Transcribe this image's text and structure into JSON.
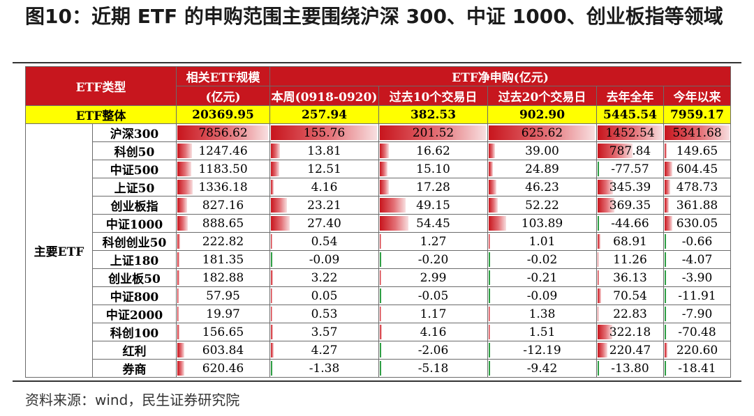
{
  "title": "图10：近期 ETF 的申购范围主要围绕沪深 300、中证 1000、创业板指等领域",
  "source": "资料来源：wind，民生证券研究院",
  "headers": {
    "type": "ETF类型",
    "scale_line1": "相关ETF规模",
    "scale_line2": "(亿元)",
    "net": "ETF净申购(亿元)",
    "week": "本周(0918-0920)",
    "d10": "过去10个交易日",
    "d20": "过去20个交易日",
    "last_year": "去年全年",
    "ytd": "今年以来"
  },
  "total": {
    "label": "ETF整体",
    "values": [
      "20369.95",
      "257.94",
      "382.53",
      "902.90",
      "5445.54",
      "7959.17"
    ]
  },
  "group_label": "主要ETF",
  "rows": [
    {
      "name": "沪深300",
      "values": [
        "7856.62",
        "155.76",
        "201.52",
        "625.62",
        "1452.54",
        "5341.68"
      ]
    },
    {
      "name": "科创50",
      "values": [
        "1247.46",
        "13.81",
        "16.62",
        "39.00",
        "787.84",
        "149.65"
      ]
    },
    {
      "name": "中证500",
      "values": [
        "1183.50",
        "12.51",
        "15.10",
        "24.89",
        "-77.57",
        "604.45"
      ]
    },
    {
      "name": "上证50",
      "values": [
        "1336.18",
        "4.16",
        "17.28",
        "46.23",
        "345.39",
        "478.73"
      ]
    },
    {
      "name": "创业板指",
      "values": [
        "827.16",
        "23.21",
        "49.15",
        "52.22",
        "369.35",
        "361.88"
      ]
    },
    {
      "name": "中证1000",
      "values": [
        "888.65",
        "27.40",
        "54.45",
        "103.89",
        "-44.66",
        "630.05"
      ]
    },
    {
      "name": "科创创业50",
      "values": [
        "222.82",
        "0.54",
        "1.27",
        "1.01",
        "68.91",
        "-0.66"
      ]
    },
    {
      "name": "上证180",
      "values": [
        "181.35",
        "-0.09",
        "-0.20",
        "-0.02",
        "11.26",
        "-4.07"
      ]
    },
    {
      "name": "创业板50",
      "values": [
        "182.88",
        "3.22",
        "2.99",
        "-0.21",
        "36.13",
        "-3.90"
      ]
    },
    {
      "name": "中证800",
      "values": [
        "57.95",
        "0.05",
        "-0.05",
        "-0.09",
        "70.54",
        "-11.91"
      ]
    },
    {
      "name": "中证2000",
      "values": [
        "19.97",
        "0.53",
        "1.17",
        "1.38",
        "22.83",
        "-7.90"
      ]
    },
    {
      "name": "科创100",
      "values": [
        "156.65",
        "3.57",
        "4.16",
        "1.51",
        "322.18",
        "-70.48"
      ]
    },
    {
      "name": "红利",
      "values": [
        "603.84",
        "4.27",
        "-2.06",
        "-12.19",
        "220.47",
        "220.60"
      ]
    },
    {
      "name": "券商",
      "values": [
        "620.46",
        "-1.38",
        "-5.18",
        "-9.42",
        "-13.80",
        "-18.41"
      ]
    }
  ],
  "colors": {
    "header_bg": "#c7161e",
    "total_bg": "#ffff00",
    "bar": "#c8151d",
    "negative_bar": "#2e9e44"
  }
}
